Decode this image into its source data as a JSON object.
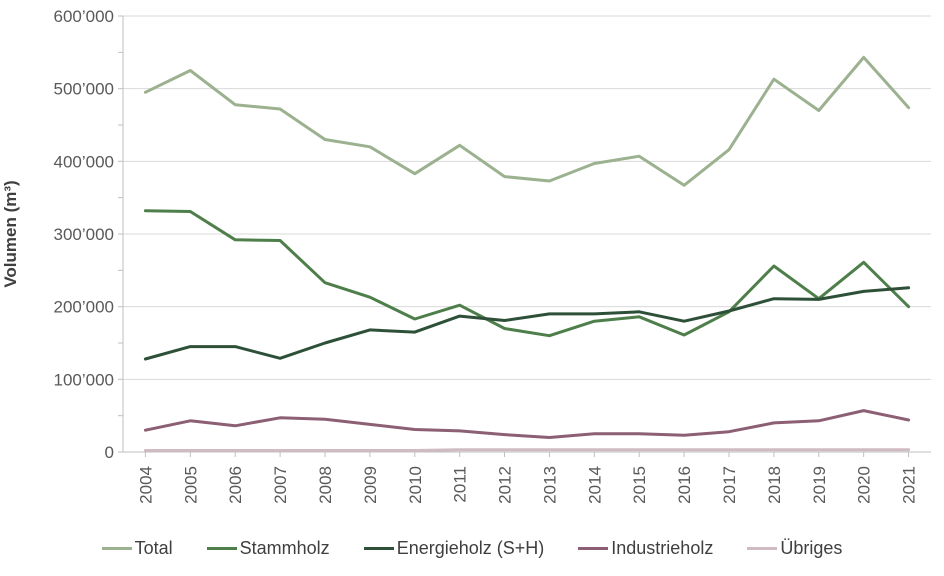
{
  "chart_data": {
    "type": "line",
    "title": "",
    "ylabel": "Volumen (m³)",
    "xlabel": "",
    "ylim": [
      0,
      600000
    ],
    "ytick_step": 100000,
    "ytick_minor_step": 50000,
    "ytick_labels": [
      "0",
      "100’000",
      "200’000",
      "300’000",
      "400’000",
      "500’000",
      "600’000"
    ],
    "grid": "horizontal",
    "legend_position": "bottom",
    "categories": [
      "2004",
      "2005",
      "2006",
      "2007",
      "2008",
      "2009",
      "2010",
      "2011",
      "2012",
      "2013",
      "2014",
      "2015",
      "2016",
      "2017",
      "2018",
      "2019",
      "2020",
      "2021"
    ],
    "series": [
      {
        "name": "Total",
        "color": "#9BB18F",
        "values": [
          495000,
          525000,
          478000,
          472000,
          430000,
          420000,
          383000,
          422000,
          379000,
          373000,
          397000,
          407000,
          367000,
          416000,
          513000,
          470000,
          543000,
          474000
        ]
      },
      {
        "name": "Stammholz",
        "color": "#4E7E4A",
        "values": [
          332000,
          331000,
          292000,
          291000,
          233000,
          213000,
          183000,
          202000,
          170000,
          160000,
          180000,
          186000,
          161000,
          193000,
          256000,
          211000,
          261000,
          200000
        ]
      },
      {
        "name": "Energieholz (S+H)",
        "color": "#2E5038",
        "values": [
          128000,
          145000,
          145000,
          129000,
          150000,
          168000,
          165000,
          187000,
          181000,
          190000,
          190000,
          193000,
          180000,
          194000,
          211000,
          210000,
          221000,
          226000
        ]
      },
      {
        "name": "Industrieholz",
        "color": "#8C5F74",
        "values": [
          30000,
          43000,
          36000,
          47000,
          45000,
          38000,
          31000,
          29000,
          24000,
          20000,
          25000,
          25000,
          23000,
          28000,
          40000,
          43000,
          57000,
          44000
        ]
      },
      {
        "name": "Übriges",
        "color": "#CFBBC1",
        "values": [
          2000,
          2000,
          2000,
          2000,
          2000,
          2000,
          2000,
          3000,
          3000,
          3000,
          3000,
          3000,
          3000,
          3000,
          3000,
          3000,
          3000,
          3000
        ]
      }
    ],
    "colors": {
      "grid": "#D9D9D9",
      "axis": "#BFBFBF",
      "tick_label": "#595959",
      "text": "#3F3F3F",
      "background": "#FFFFFF"
    }
  }
}
